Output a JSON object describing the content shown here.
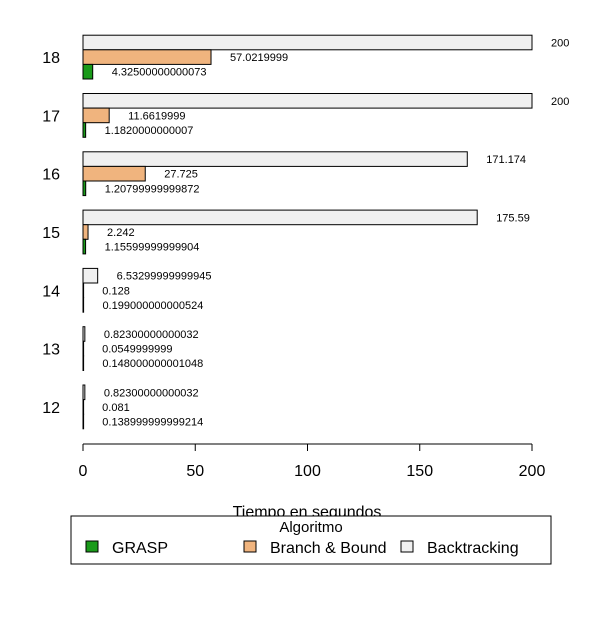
{
  "chart_data": {
    "type": "bar",
    "orientation": "horizontal",
    "categories": [
      "12",
      "13",
      "14",
      "15",
      "16",
      "17",
      "18"
    ],
    "series": [
      {
        "name": "GRASP",
        "color": "#1a9a1a",
        "values": [
          0.138999999999214,
          0.148000000001048,
          0.199000000000524,
          1.15599999999904,
          1.20799999999872,
          1.1820000000007,
          4.32500000000073
        ],
        "labels": [
          "0.138999999999214",
          "0.148000000001048",
          "0.199000000000524",
          "1.15599999999904",
          "1.20799999999872",
          "1.1820000000007",
          "4.32500000000073"
        ]
      },
      {
        "name": "Branch & Bound",
        "color": "#f0b47e",
        "values": [
          0.081,
          0.0549999999,
          0.128,
          2.242,
          27.725,
          11.6619999,
          57.0219999
        ],
        "labels": [
          "0.081",
          "0.0549999999",
          "0.128",
          "2.242",
          "27.725",
          "11.6619999",
          "57.0219999"
        ]
      },
      {
        "name": "Backtracking",
        "color": "#f0f0f0",
        "values": [
          0.82300000000032,
          0.82300000000032,
          6.53299999999945,
          175.59,
          171.174,
          200,
          200
        ],
        "labels": [
          "0.82300000000032",
          "0.82300000000032",
          "6.53299999999945",
          "175.59",
          "171.174",
          "200",
          "200"
        ]
      }
    ],
    "xlabel": "Tiempo en segundos",
    "xlim": [
      0,
      200
    ],
    "xticks": [
      "0",
      "50",
      "100",
      "150",
      "200"
    ],
    "legend": {
      "title": "Algoritmo",
      "placement": "bottom"
    },
    "grid": false
  }
}
